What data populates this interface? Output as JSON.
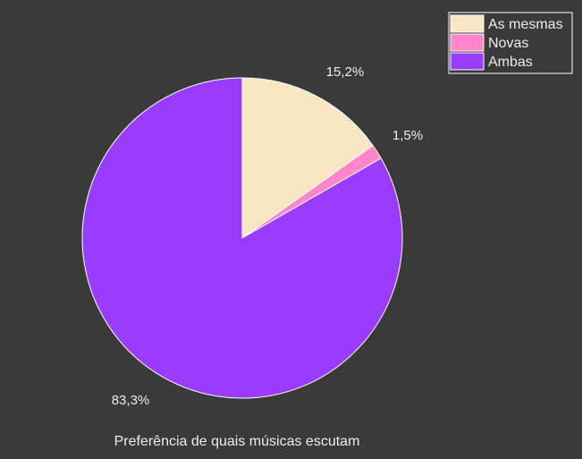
{
  "chart_data": {
    "type": "pie",
    "title": "",
    "caption": "Preferência de quais músicas escutam",
    "legend_position": "top-right",
    "slices": [
      {
        "label": "As mesmas",
        "value": 15.2,
        "display": "15,2%",
        "color": "#f8e6c3"
      },
      {
        "label": "Novas",
        "value": 1.5,
        "display": "1,5%",
        "color": "#ff86c8"
      },
      {
        "label": "Ambas",
        "value": 83.3,
        "display": "83,3%",
        "color": "#9a3cff"
      }
    ]
  },
  "colors": {
    "background": "#3a3a3a",
    "outline": "#ffffff",
    "text": "#ececec"
  }
}
